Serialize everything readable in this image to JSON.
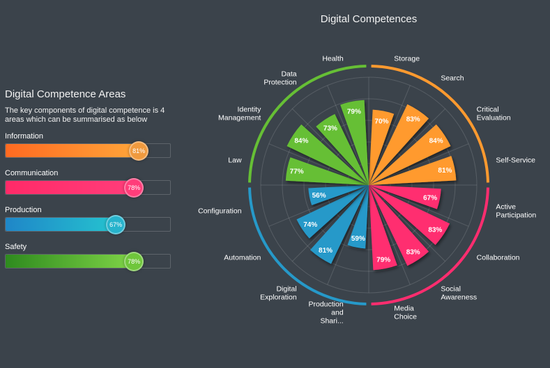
{
  "panel": {
    "title": "Digital Competence Areas",
    "description": "The key components of digital competence is 4 areas which can be summarised as below",
    "metrics": [
      {
        "name": "Information",
        "value": 81,
        "value_label": "81%",
        "color_from": "#ff6a21",
        "color_to": "#ffa63a",
        "knob": "#f09a3e"
      },
      {
        "name": "Communication",
        "value": 78,
        "value_label": "78%",
        "color_from": "#ff2a68",
        "color_to": "#ff3d7a",
        "knob": "#ff3d7a"
      },
      {
        "name": "Production",
        "value": 67,
        "value_label": "67%",
        "color_from": "#1f86c8",
        "color_to": "#25c3cf",
        "knob": "#27b3cc"
      },
      {
        "name": "Safety",
        "value": 78,
        "value_label": "78%",
        "color_from": "#2e8a1e",
        "color_to": "#7fd447",
        "knob": "#6fc63b"
      }
    ]
  },
  "chart_data": {
    "type": "polar-bar",
    "title": "Digital Competences",
    "rlim": [
      0,
      100
    ],
    "groups": [
      {
        "name": "Information",
        "color": "#ff9a2f"
      },
      {
        "name": "Communication",
        "color": "#ff2d6f"
      },
      {
        "name": "Production",
        "color": "#2699c9"
      },
      {
        "name": "Safety",
        "color": "#66bf35"
      }
    ],
    "categories": [
      {
        "name": "Storage",
        "group": 0,
        "value": 70,
        "value_label": "70%"
      },
      {
        "name": "Search",
        "group": 0,
        "value": 83,
        "value_label": "83%"
      },
      {
        "name": "Critical Evaluation",
        "group": 0,
        "value": 84,
        "value_label": "84%"
      },
      {
        "name": "Self-Service",
        "group": 0,
        "value": 81,
        "value_label": "81%"
      },
      {
        "name": "Active Participation",
        "group": 1,
        "value": 67,
        "value_label": "67%"
      },
      {
        "name": "Collaboration",
        "group": 1,
        "value": 83,
        "value_label": "83%"
      },
      {
        "name": "Social Awareness",
        "group": 1,
        "value": 83,
        "value_label": "83%"
      },
      {
        "name": "Media Choice",
        "group": 1,
        "value": 79,
        "value_label": "79%"
      },
      {
        "name": "Production and Shari...",
        "group": 2,
        "value": 59,
        "value_label": "59%"
      },
      {
        "name": "Digital Exploration",
        "group": 2,
        "value": 81,
        "value_label": "81%"
      },
      {
        "name": "Automation",
        "group": 2,
        "value": 74,
        "value_label": "74%"
      },
      {
        "name": "Configuration",
        "group": 2,
        "value": 56,
        "value_label": "56%"
      },
      {
        "name": "Law",
        "group": 3,
        "value": 77,
        "value_label": "77%"
      },
      {
        "name": "Identity Management",
        "group": 3,
        "value": 84,
        "value_label": "84%"
      },
      {
        "name": "Data Protection",
        "group": 3,
        "value": 73,
        "value_label": "73%"
      },
      {
        "name": "Health",
        "group": 3,
        "value": 79,
        "value_label": "79%"
      }
    ]
  }
}
